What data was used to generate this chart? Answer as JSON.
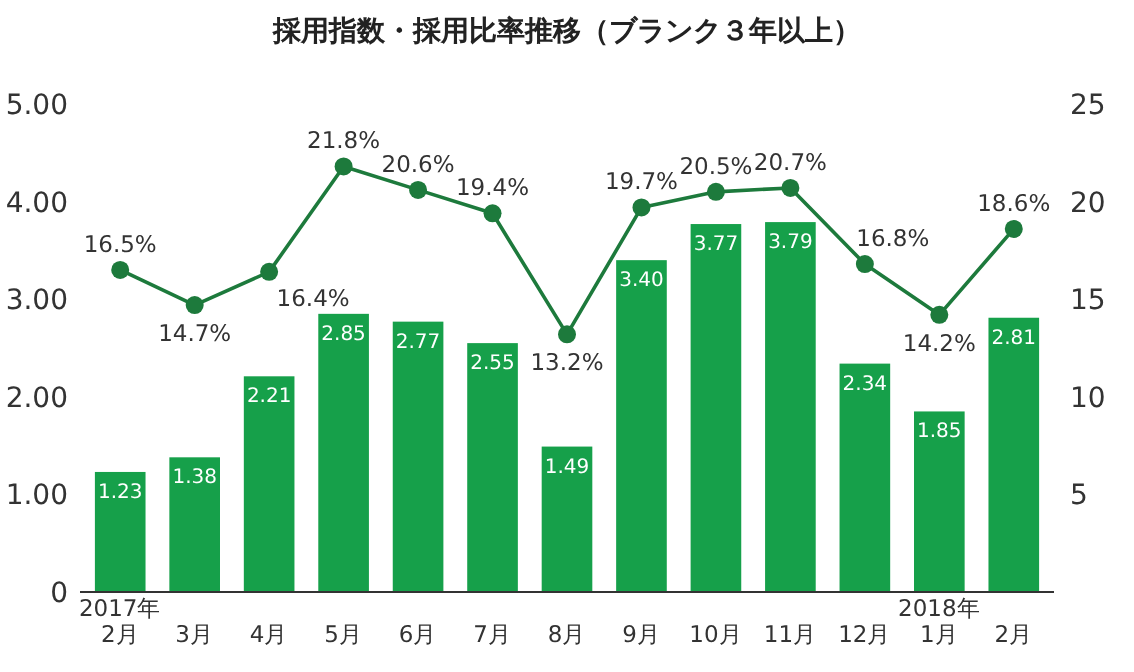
{
  "chart_data": {
    "type": "bar",
    "title": "採用指数・採用比率推移（ブランク３年以上）",
    "categories": [
      "2017年\n2月",
      "3月",
      "4月",
      "5月",
      "6月",
      "7月",
      "8月",
      "9月",
      "10月",
      "11月",
      "12月",
      "2018年\n1月",
      "2月"
    ],
    "series": [
      {
        "color": "#16a04a",
        "values": [
          1.23,
          1.38,
          2.21,
          2.85,
          2.77,
          2.55,
          1.49,
          3.4,
          3.77,
          3.79,
          2.34,
          1.85,
          2.81
        ],
        "value_labels": [
          "1.23",
          "1.38",
          "2.21",
          "2.85",
          "2.77",
          "2.55",
          "1.49",
          "3.40",
          "3.77",
          "3.79",
          "2.34",
          "1.85",
          "2.81"
        ]
      },
      {
        "type": "line",
        "axis": "y2",
        "color": "#1d7a3c",
        "marker": "circle",
        "values": [
          16.5,
          14.7,
          16.4,
          21.8,
          20.6,
          19.4,
          13.2,
          19.7,
          20.5,
          20.7,
          16.8,
          14.2,
          18.6
        ],
        "value_labels": [
          "16.5%",
          "14.7%",
          "16.4%",
          "21.8%",
          "20.6%",
          "19.4%",
          "13.2%",
          "19.7%",
          "20.5%",
          "20.7%",
          "16.8%",
          "14.2%",
          "18.6%"
        ]
      }
    ],
    "ylim": [
      0,
      5
    ],
    "yticks": [
      0,
      {
        "value": 1,
        "label": "1.00"
      },
      {
        "value": 2,
        "label": "2.00"
      },
      {
        "value": 3,
        "label": "3.00"
      },
      {
        "value": 4,
        "label": "4.00"
      },
      {
        "value": 5,
        "label": "5.00"
      }
    ],
    "y2lim": [
      0,
      25
    ],
    "y2ticks": [
      5,
      10,
      15,
      20,
      25
    ],
    "grid": false
  }
}
